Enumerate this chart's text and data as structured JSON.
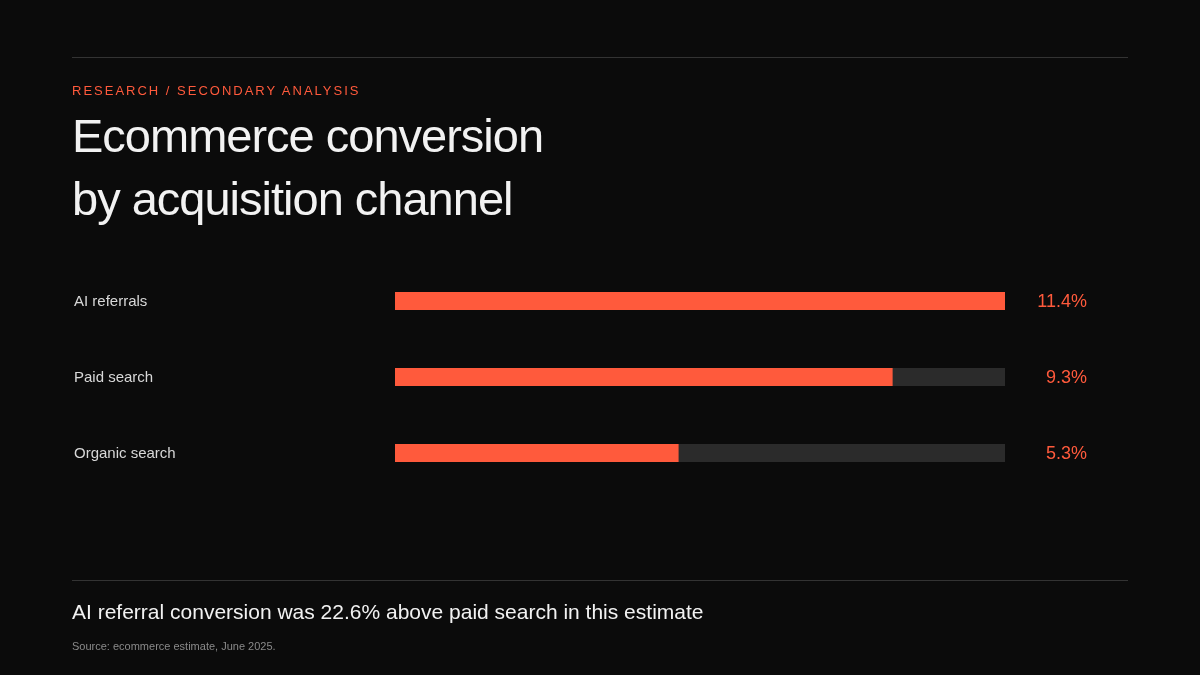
{
  "chart_data": {
    "type": "bar",
    "orientation": "horizontal",
    "subtitle": "RESEARCH / SECONDARY ANALYSIS",
    "title": "Ecommerce conversion\nby acquisition channel",
    "categories": [
      "AI referrals",
      "Paid search",
      "Organic search"
    ],
    "values": [
      11.4,
      9.3,
      5.3
    ],
    "value_labels": [
      "11.4%",
      "9.3%",
      "5.3%"
    ],
    "color": "#ff5a3c",
    "grid": false,
    "legend": false,
    "annotations": [
      "AI referral conversion was 22.6% above paid search in this estimate",
      "Source: ecommerce estimate, June 2025."
    ]
  }
}
